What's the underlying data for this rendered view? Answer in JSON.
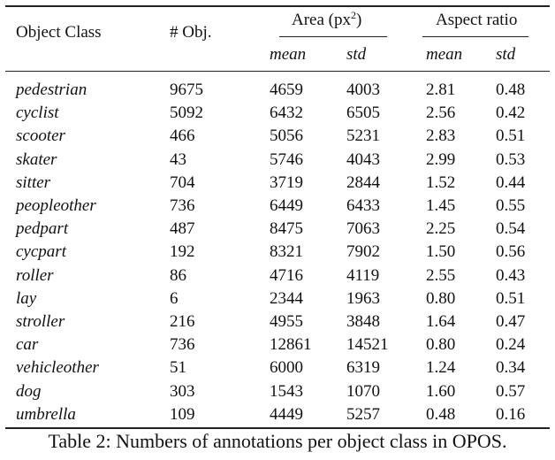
{
  "table": {
    "header": {
      "object_class": "Object Class",
      "num_obj": "# Obj.",
      "area_group": "Area (px",
      "area_sup": "2",
      "area_close": ")",
      "aspect_group": "Aspect ratio",
      "mean": "mean",
      "std": "std"
    },
    "rows": [
      {
        "cls": "pedestrian",
        "n": "9675",
        "area_mean": "4659",
        "area_std": "4003",
        "ar_mean": "2.81",
        "ar_std": "0.48"
      },
      {
        "cls": "cyclist",
        "n": "5092",
        "area_mean": "6432",
        "area_std": "6505",
        "ar_mean": "2.56",
        "ar_std": "0.42"
      },
      {
        "cls": "scooter",
        "n": "466",
        "area_mean": "5056",
        "area_std": "5231",
        "ar_mean": "2.83",
        "ar_std": "0.51"
      },
      {
        "cls": "skater",
        "n": "43",
        "area_mean": "5746",
        "area_std": "4043",
        "ar_mean": "2.99",
        "ar_std": "0.53"
      },
      {
        "cls": "sitter",
        "n": "704",
        "area_mean": "3719",
        "area_std": "2844",
        "ar_mean": "1.52",
        "ar_std": "0.44"
      },
      {
        "cls": "peopleother",
        "n": "736",
        "area_mean": "6449",
        "area_std": "6433",
        "ar_mean": "1.45",
        "ar_std": "0.55"
      },
      {
        "cls": "pedpart",
        "n": "487",
        "area_mean": "8475",
        "area_std": "7063",
        "ar_mean": "2.25",
        "ar_std": "0.54"
      },
      {
        "cls": "cycpart",
        "n": "192",
        "area_mean": "8321",
        "area_std": "7902",
        "ar_mean": "1.50",
        "ar_std": "0.56"
      },
      {
        "cls": "roller",
        "n": "86",
        "area_mean": "4716",
        "area_std": "4119",
        "ar_mean": "2.55",
        "ar_std": "0.43"
      },
      {
        "cls": "lay",
        "n": "6",
        "area_mean": "2344",
        "area_std": "1963",
        "ar_mean": "0.80",
        "ar_std": "0.51"
      },
      {
        "cls": "stroller",
        "n": "216",
        "area_mean": "4955",
        "area_std": "3848",
        "ar_mean": "1.64",
        "ar_std": "0.47"
      },
      {
        "cls": "car",
        "n": "736",
        "area_mean": "12861",
        "area_std": "14521",
        "ar_mean": "0.80",
        "ar_std": "0.24"
      },
      {
        "cls": "vehicleother",
        "n": "51",
        "area_mean": "6000",
        "area_std": "6319",
        "ar_mean": "1.24",
        "ar_std": "0.34"
      },
      {
        "cls": "dog",
        "n": "303",
        "area_mean": "1543",
        "area_std": "1070",
        "ar_mean": "1.60",
        "ar_std": "0.57"
      },
      {
        "cls": "umbrella",
        "n": "109",
        "area_mean": "4449",
        "area_std": "5257",
        "ar_mean": "0.48",
        "ar_std": "0.16"
      }
    ]
  },
  "caption": "Table 2: Numbers of annotations per object class in OPOS."
}
